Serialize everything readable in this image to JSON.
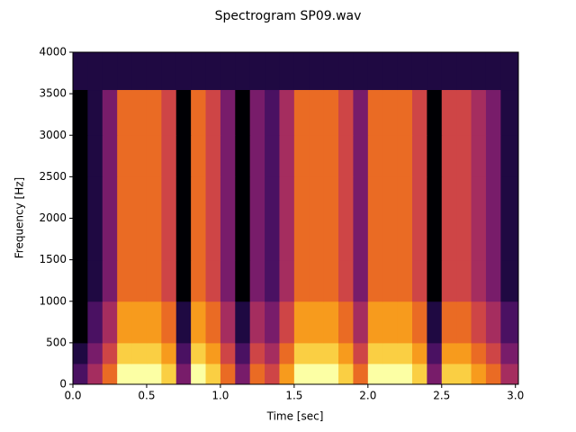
{
  "chart_data": {
    "type": "spectrogram",
    "title": "Spectrogram SP09.wav",
    "x_label": "Time [sec]",
    "y_label": "Frequency [Hz]",
    "xlim": [
      0,
      3.02
    ],
    "ylim": [
      0,
      4000
    ],
    "xticks": [
      {
        "value": 0,
        "label": "0.0"
      },
      {
        "value": 0.5,
        "label": "0.5"
      },
      {
        "value": 1,
        "label": "1.0"
      },
      {
        "value": 1.5,
        "label": "1.5"
      },
      {
        "value": 2,
        "label": "2.0"
      },
      {
        "value": 2.5,
        "label": "2.5"
      },
      {
        "value": 3,
        "label": "3.0"
      }
    ],
    "yticks": [
      0,
      500,
      1000,
      1500,
      2000,
      2500,
      3000,
      3500,
      4000
    ],
    "colormap": "inferno",
    "clim": [
      0,
      9
    ],
    "x_edges": [
      0,
      0.1,
      0.2,
      0.3,
      0.4,
      0.5,
      0.6,
      0.7,
      0.8,
      0.9,
      1.0,
      1.1,
      1.2,
      1.3,
      1.4,
      1.5,
      1.6,
      1.7,
      1.8,
      1.9,
      2.0,
      2.1,
      2.2,
      2.3,
      2.4,
      2.5,
      2.6,
      2.7,
      2.8,
      2.9,
      3.02
    ],
    "y_edges": [
      0,
      250,
      500,
      1000,
      1500,
      2000,
      2500,
      3000,
      3550,
      4000
    ],
    "values": [
      [
        2,
        4,
        6,
        9,
        9,
        9,
        8,
        3,
        9,
        8,
        6,
        3,
        6,
        5,
        7,
        9,
        9,
        9,
        8,
        6,
        9,
        9,
        9,
        8,
        3,
        8,
        8,
        7,
        6,
        4
      ],
      [
        1,
        3,
        5,
        8,
        8,
        8,
        7,
        2,
        8,
        7,
        5,
        2,
        5,
        4,
        6,
        8,
        8,
        8,
        7,
        5,
        8,
        8,
        8,
        7,
        2,
        7,
        7,
        6,
        5,
        3
      ],
      [
        0,
        2,
        4,
        7,
        7,
        7,
        6,
        1,
        7,
        6,
        4,
        1,
        4,
        3,
        5,
        7,
        7,
        7,
        6,
        4,
        7,
        7,
        7,
        6,
        1,
        6,
        6,
        5,
        4,
        2
      ],
      [
        0,
        1,
        3,
        6,
        6,
        6,
        5,
        0,
        6,
        5,
        3,
        0,
        3,
        2,
        4,
        6,
        6,
        6,
        5,
        3,
        6,
        6,
        6,
        5,
        0,
        5,
        5,
        4,
        3,
        1
      ],
      [
        0,
        1,
        3,
        6,
        6,
        6,
        5,
        0,
        6,
        5,
        3,
        0,
        3,
        2,
        4,
        6,
        6,
        6,
        5,
        3,
        6,
        6,
        6,
        5,
        0,
        5,
        5,
        4,
        3,
        1
      ],
      [
        0,
        1,
        3,
        6,
        6,
        6,
        5,
        0,
        6,
        5,
        3,
        0,
        3,
        2,
        4,
        6,
        6,
        6,
        5,
        3,
        6,
        6,
        6,
        5,
        0,
        5,
        5,
        4,
        3,
        1
      ],
      [
        0,
        1,
        3,
        6,
        6,
        6,
        5,
        0,
        6,
        5,
        3,
        0,
        3,
        2,
        4,
        6,
        6,
        6,
        5,
        3,
        6,
        6,
        6,
        5,
        0,
        5,
        5,
        4,
        3,
        1
      ],
      [
        0,
        1,
        3,
        6,
        6,
        6,
        5,
        0,
        6,
        5,
        3,
        0,
        3,
        2,
        4,
        6,
        6,
        6,
        5,
        3,
        6,
        6,
        6,
        5,
        0,
        5,
        5,
        4,
        3,
        1
      ],
      [
        1,
        1,
        1,
        1,
        1,
        1,
        1,
        1,
        1,
        1,
        1,
        1,
        1,
        1,
        1,
        1,
        1,
        1,
        1,
        1,
        1,
        1,
        1,
        1,
        1,
        1,
        1,
        1,
        1,
        1
      ]
    ]
  }
}
